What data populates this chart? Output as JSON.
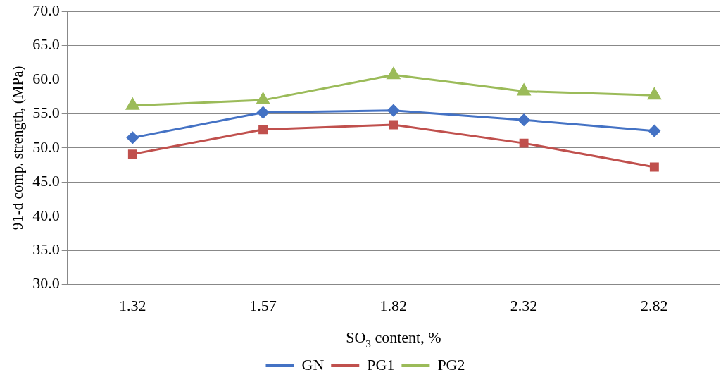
{
  "chart_data": {
    "type": "line",
    "xlabel": "SO$_{3}$ content, %",
    "ylabel": "91-d comp. strength, (MPa)",
    "categories": [
      "1.32",
      "1.57",
      "1.82",
      "2.32",
      "2.82"
    ],
    "series": [
      {
        "name": "GN",
        "color": "#4472c4",
        "marker": "diamond",
        "values": [
          51.5,
          55.2,
          55.5,
          54.1,
          52.5
        ]
      },
      {
        "name": "PG1",
        "color": "#c0504d",
        "marker": "square",
        "values": [
          49.1,
          52.7,
          53.4,
          50.7,
          47.2
        ]
      },
      {
        "name": "PG2",
        "color": "#9bbb59",
        "marker": "triangle",
        "values": [
          56.2,
          57.0,
          60.7,
          58.3,
          57.7
        ]
      }
    ],
    "ylim": [
      30,
      70
    ],
    "yticks": [
      {
        "value": 30,
        "label": "30.0"
      },
      {
        "value": 35,
        "label": "35.0"
      },
      {
        "value": 40,
        "label": "40.0"
      },
      {
        "value": 45,
        "label": "45.0"
      },
      {
        "value": 50,
        "label": "50.0"
      },
      {
        "value": 55,
        "label": "55.0"
      },
      {
        "value": 60,
        "label": "60.0"
      },
      {
        "value": 65,
        "label": "65.0"
      },
      {
        "value": 70,
        "label": "70.0"
      }
    ],
    "grid": "y",
    "legend": "bottom",
    "line_style": "solid"
  }
}
